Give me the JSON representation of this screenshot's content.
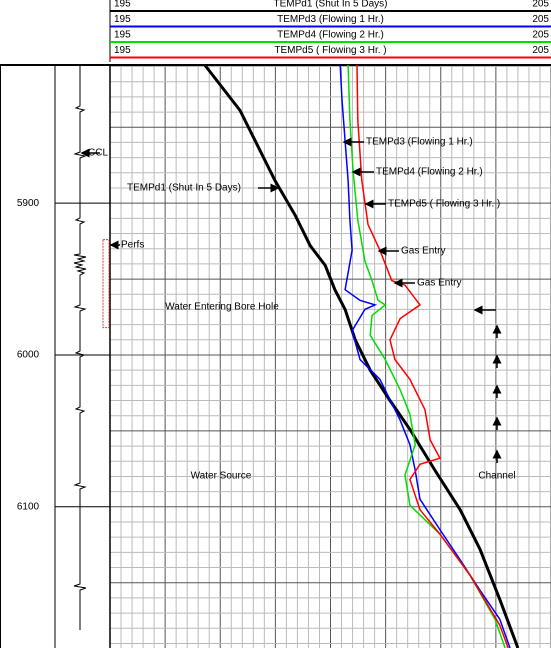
{
  "chart_data": {
    "type": "line",
    "xlim": [
      195,
      205
    ],
    "ylim": [
      5809,
      6193
    ],
    "yticks": [
      5900,
      6000,
      6100
    ],
    "xgrid": {
      "step": 0.25,
      "major_step": 1.25
    },
    "ygrid": {
      "step": 10,
      "major_step": 50
    },
    "grid": true,
    "series": [
      {
        "name": "TEMPd1 (Shut In 5 Days)",
        "color": "#000000",
        "x": [
          197.15,
          197.95,
          198.74,
          199.2,
          199.54,
          199.88,
          200.1,
          200.33,
          200.56,
          200.9,
          201.35,
          201.8,
          202.37,
          202.94,
          203.39,
          203.84,
          204.25
        ],
        "values": [
          5809,
          5839,
          5885,
          5908,
          5928,
          5941,
          5957,
          5970,
          5990,
          6010,
          6030,
          6049,
          6076,
          6102,
          6128,
          6161,
          6193
        ]
      },
      {
        "name": "TEMPd3 (Flowing 1 Hr.)",
        "color": "#0000ff",
        "x": [
          200.22,
          200.26,
          200.33,
          200.4,
          200.44,
          200.49,
          200.33,
          200.67,
          201.01,
          200.78,
          200.49,
          200.67,
          201.12,
          201.58,
          201.8,
          201.92,
          202.03,
          202.48,
          202.94,
          203.39,
          203.84,
          204.07
        ],
        "values": [
          5809,
          5832,
          5859,
          5885,
          5911,
          5931,
          5957,
          5964,
          5967,
          5970,
          5984,
          6003,
          6016,
          6043,
          6059,
          6076,
          6095,
          6115,
          6135,
          6155,
          6174,
          6193
        ]
      },
      {
        "name": "TEMPd4 (Flowing 2 Hr.)",
        "color": "#00dd00",
        "x": [
          200.4,
          200.44,
          200.51,
          200.62,
          200.78,
          200.94,
          201.08,
          201.24,
          200.94,
          200.9,
          201.24,
          201.58,
          201.8,
          201.92,
          201.69,
          201.8,
          202.48,
          203.16,
          203.73,
          203.96
        ],
        "values": [
          5809,
          5845,
          5878,
          5911,
          5938,
          5951,
          5964,
          5967,
          5974,
          5987,
          6003,
          6023,
          6039,
          6059,
          6079,
          6099,
          6118,
          6145,
          6174,
          6193
        ]
      },
      {
        "name": "TEMPd5 ( Flowing 3 Hr. )",
        "color": "#ff0000",
        "x": [
          200.6,
          200.62,
          200.71,
          200.85,
          201.12,
          201.39,
          201.69,
          202.03,
          201.58,
          201.35,
          201.46,
          201.8,
          202.14,
          202.26,
          202.48,
          202.03,
          201.8,
          202.03,
          202.48,
          203.16,
          203.84,
          204.03
        ],
        "values": [
          5809,
          5845,
          5885,
          5914,
          5931,
          5951,
          5954,
          5967,
          5976,
          5990,
          6003,
          6016,
          6036,
          6056,
          6068,
          6072,
          6082,
          6102,
          6118,
          6145,
          6178,
          6193
        ]
      }
    ],
    "perfs": [
      5924,
      5982
    ],
    "annotations": [
      "CCL",
      "Perfs",
      "TEMPd1 (Shut In 5 Days)",
      "TEMPd3 (Flowing 1 Hr.)",
      "TEMPd4 (Flowing 2 Hr.)",
      "TEMPd5 ( Flowing 3 Hr. )",
      "Gas Entry",
      "Gas Entry",
      "Water Entering Bore Hole",
      "Water Source",
      "Channel"
    ]
  }
}
